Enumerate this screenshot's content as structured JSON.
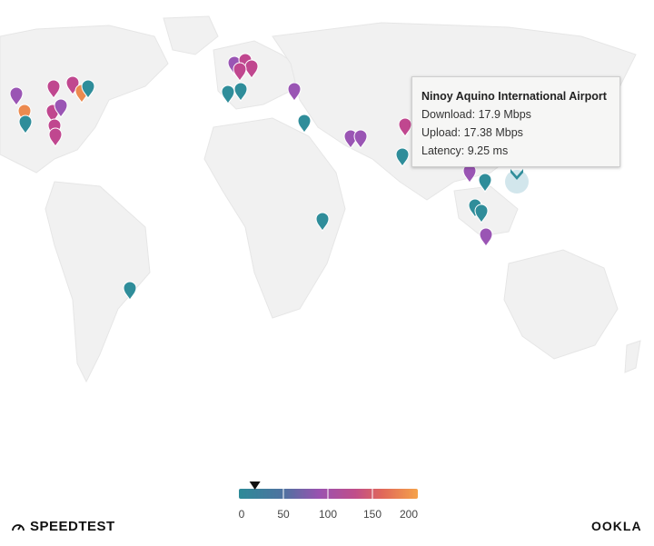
{
  "tooltip": {
    "title": "Ninoy Aquino International Airport",
    "download_label": "Download:",
    "download": "17.9 Mbps",
    "upload_label": "Upload:",
    "upload": "17.38 Mbps",
    "latency_label": "Latency:",
    "latency": "9.25 ms"
  },
  "legend": {
    "ticks": [
      "0",
      "50",
      "100",
      "150",
      "200"
    ],
    "indicator_value": 17.9,
    "range": [
      0,
      200
    ],
    "colors": [
      "#2d8a98",
      "#5a6fa0",
      "#9a52b0",
      "#c04e8a",
      "#e0685a",
      "#f5a24a"
    ]
  },
  "brand": {
    "left": "SPEEDTEST",
    "right": "OOKLA"
  },
  "colors": {
    "teal": "#2f8d9a",
    "purple": "#9a55b4",
    "magenta": "#c0478f",
    "orange": "#ec8a4f",
    "selected_halo": "#cde3ea"
  }
}
